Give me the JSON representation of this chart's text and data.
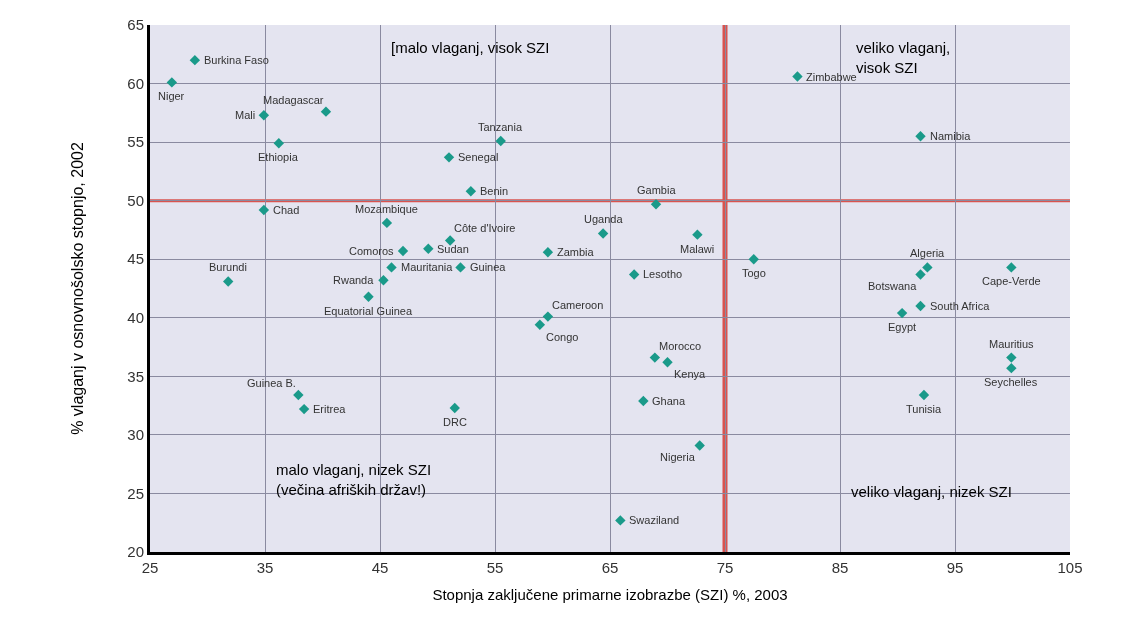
{
  "chart_data": {
    "type": "scatter",
    "xlabel": "Stopnja zaključene primarne izobrazbe (SZI) %, 2003",
    "ylabel": "% vlaganj v osnovnošolsko stopnjo, 2002",
    "xlim": [
      25,
      105
    ],
    "xticks": [
      25,
      35,
      45,
      55,
      65,
      75,
      85,
      95,
      105
    ],
    "ylim": [
      20,
      65
    ],
    "yticks": [
      20,
      25,
      30,
      35,
      40,
      45,
      50,
      55,
      60,
      65
    ],
    "grid": true,
    "marker": "diamond",
    "ref_lines": [
      {
        "axis": "x",
        "value": 75,
        "color": "#d9534f"
      },
      {
        "axis": "y",
        "value": 50,
        "color": "#d9534f"
      }
    ],
    "series": [
      {
        "color": "#1a9a8a",
        "x": [
          28.9,
          26.9,
          40.3,
          34.9,
          36.2,
          55.5,
          51.0,
          52.9,
          34.9,
          45.6,
          51.1,
          49.2,
          47.0,
          59.6,
          64.4,
          52.0,
          46.0,
          45.3,
          31.8,
          44.0,
          59.6,
          58.9,
          37.9,
          38.4,
          51.5,
          65.9,
          81.3,
          92.0,
          69.0,
          72.6,
          67.1,
          77.5,
          92.6,
          92.0,
          99.9,
          92.0,
          90.4,
          99.9,
          99.9,
          68.9,
          70.0,
          67.9,
          92.3,
          72.8
        ],
        "values": [
          62.0,
          60.1,
          57.6,
          57.3,
          54.9,
          55.1,
          53.7,
          50.8,
          49.2,
          48.1,
          46.6,
          45.9,
          45.7,
          45.6,
          47.2,
          44.3,
          44.3,
          43.2,
          43.1,
          41.8,
          40.1,
          39.4,
          33.4,
          32.2,
          32.3,
          22.7,
          60.6,
          55.5,
          49.7,
          47.1,
          43.7,
          45.0,
          44.3,
          43.7,
          44.3,
          41.0,
          40.4,
          36.6,
          35.7,
          36.6,
          36.2,
          32.9,
          33.4,
          29.1
        ]
      }
    ],
    "annotations": [
      "[malo vlaganj, visok SZI",
      "veliko vlaganj,\nvisok SZI",
      "malo vlaganj, nizek SZI\n(večina afriških držav!)",
      "veliko vlaganj, nizek SZI",
      {
        "text": "Burkina Faso",
        "x": 28.9,
        "y": 62.0
      },
      {
        "text": "Niger",
        "x": 26.9,
        "y": 60.1
      },
      {
        "text": "Madagascar",
        "x": 40.3,
        "y": 57.6
      },
      {
        "text": "Mali",
        "x": 34.9,
        "y": 57.3
      },
      {
        "text": "Ethiopia",
        "x": 36.2,
        "y": 54.9
      },
      {
        "text": "Tanzania",
        "x": 55.5,
        "y": 55.1
      },
      {
        "text": "Senegal",
        "x": 51.0,
        "y": 53.7
      },
      {
        "text": "Benin",
        "x": 52.9,
        "y": 50.8
      },
      {
        "text": "Chad",
        "x": 34.9,
        "y": 49.2
      },
      {
        "text": "Mozambique",
        "x": 45.6,
        "y": 48.1
      },
      {
        "text": "Côte d'Ivoire",
        "x": 51.1,
        "y": 46.6
      },
      {
        "text": "Sudan",
        "x": 49.2,
        "y": 45.9
      },
      {
        "text": "Comoros",
        "x": 47.0,
        "y": 45.7
      },
      {
        "text": "Zambia",
        "x": 59.6,
        "y": 45.6
      },
      {
        "text": "Uganda",
        "x": 64.4,
        "y": 47.2
      },
      {
        "text": "Guinea",
        "x": 52.0,
        "y": 44.3
      },
      {
        "text": "Mauritania",
        "x": 46.0,
        "y": 44.3
      },
      {
        "text": "Rwanda",
        "x": 45.3,
        "y": 43.2
      },
      {
        "text": "Burundi",
        "x": 31.8,
        "y": 43.1
      },
      {
        "text": "Equatorial Guinea",
        "x": 44.0,
        "y": 41.8
      },
      {
        "text": "Cameroon",
        "x": 59.6,
        "y": 40.1
      },
      {
        "text": "Congo",
        "x": 58.9,
        "y": 39.4
      },
      {
        "text": "Guinea B.",
        "x": 37.9,
        "y": 33.4
      },
      {
        "text": "Eritrea",
        "x": 38.4,
        "y": 32.2
      },
      {
        "text": "DRC",
        "x": 51.5,
        "y": 32.3
      },
      {
        "text": "Swaziland",
        "x": 65.9,
        "y": 22.7
      },
      {
        "text": "Zimbabwe",
        "x": 81.3,
        "y": 60.6
      },
      {
        "text": "Namibia",
        "x": 92.0,
        "y": 55.5
      },
      {
        "text": "Gambia",
        "x": 69.0,
        "y": 49.7
      },
      {
        "text": "Malawi",
        "x": 72.6,
        "y": 47.1
      },
      {
        "text": "Lesotho",
        "x": 67.1,
        "y": 43.7
      },
      {
        "text": "Togo",
        "x": 77.5,
        "y": 45.0
      },
      {
        "text": "Algeria",
        "x": 92.6,
        "y": 44.3
      },
      {
        "text": "Botswana",
        "x": 92.0,
        "y": 43.7
      },
      {
        "text": "Cape-Verde",
        "x": 99.9,
        "y": 44.3
      },
      {
        "text": "South Africa",
        "x": 92.0,
        "y": 41.0
      },
      {
        "text": "Egypt",
        "x": 90.4,
        "y": 40.4
      },
      {
        "text": "Mauritius",
        "x": 99.9,
        "y": 36.6
      },
      {
        "text": "Seychelles",
        "x": 99.9,
        "y": 35.7
      },
      {
        "text": "Morocco",
        "x": 68.9,
        "y": 36.6
      },
      {
        "text": "Kenya",
        "x": 70.0,
        "y": 36.2
      },
      {
        "text": "Ghana",
        "x": 67.9,
        "y": 32.9
      },
      {
        "text": "Tunisia",
        "x": 92.3,
        "y": 33.4
      },
      {
        "text": "Nigeria",
        "x": 72.8,
        "y": 29.1
      }
    ]
  }
}
